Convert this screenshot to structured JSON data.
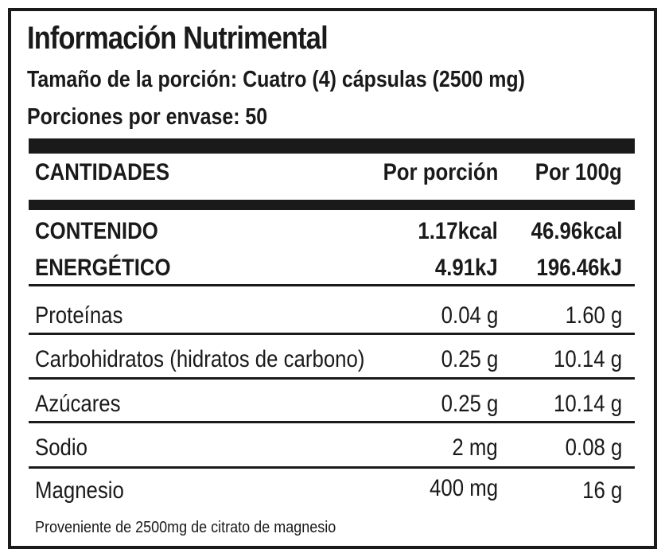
{
  "label": {
    "title": "Información Nutrimental",
    "serving_size": "Tamaño de la porción: Cuatro (4) cápsulas (2500 mg)",
    "servings_per_container": "Porciones por envase: 50"
  },
  "table": {
    "headers": [
      "CANTIDADES",
      "Por porción",
      "Por 100g"
    ],
    "energy": {
      "label_line1": "CONTENIDO",
      "label_line2": "ENERGÉTICO",
      "kcal_per_serving": "1.17kcal",
      "kcal_per_100g": "46.96kcal",
      "kj_per_serving": "4.91kJ",
      "kj_per_100g": "196.46kJ"
    },
    "rows": [
      {
        "name": "Proteínas",
        "per_serving": "0.04 g",
        "per_100g": "1.60 g"
      },
      {
        "name": "Carbohidratos (hidratos de carbono)",
        "per_serving": "0.25 g",
        "per_100g": "10.14 g"
      },
      {
        "name": "Azúcares",
        "per_serving": "0.25 g",
        "per_100g": "10.14 g"
      },
      {
        "name": "Sodio",
        "per_serving": "2 mg",
        "per_100g": "0.08 g"
      },
      {
        "name": "Magnesio",
        "per_serving": "400 mg",
        "per_100g": "16 g"
      }
    ],
    "footnote": "Proveniente de 2500mg de citrato de magnesio"
  }
}
